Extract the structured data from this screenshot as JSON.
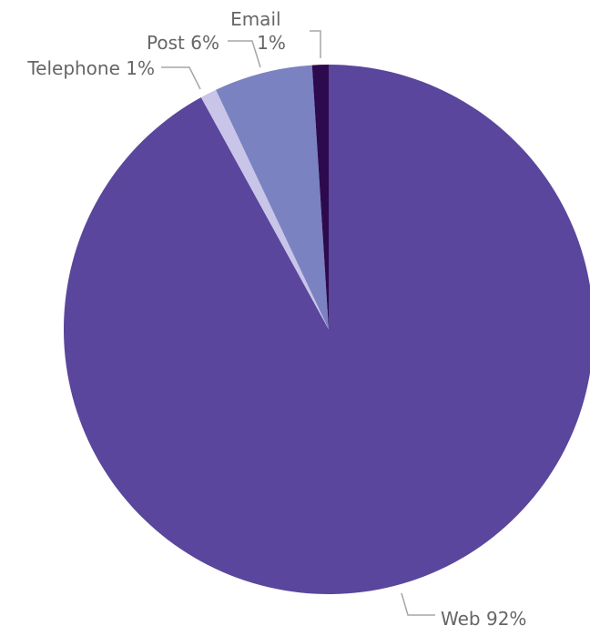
{
  "chart_data": {
    "type": "pie",
    "title": "",
    "start_position": "top",
    "direction": "clockwise",
    "slices": [
      {
        "label": "Web",
        "value": 92,
        "value_label": "92%",
        "color": "#5a469c"
      },
      {
        "label": "Telephone",
        "value": 1,
        "value_label": "1%",
        "color": "#c9c5e8"
      },
      {
        "label": "Post",
        "value": 6,
        "value_label": "6%",
        "color": "#7b82c1"
      },
      {
        "label": "Email",
        "value": 1,
        "value_label": "1%",
        "color": "#2d0a4e"
      }
    ],
    "legend": "none",
    "data_labels": "outside with leader lines"
  }
}
